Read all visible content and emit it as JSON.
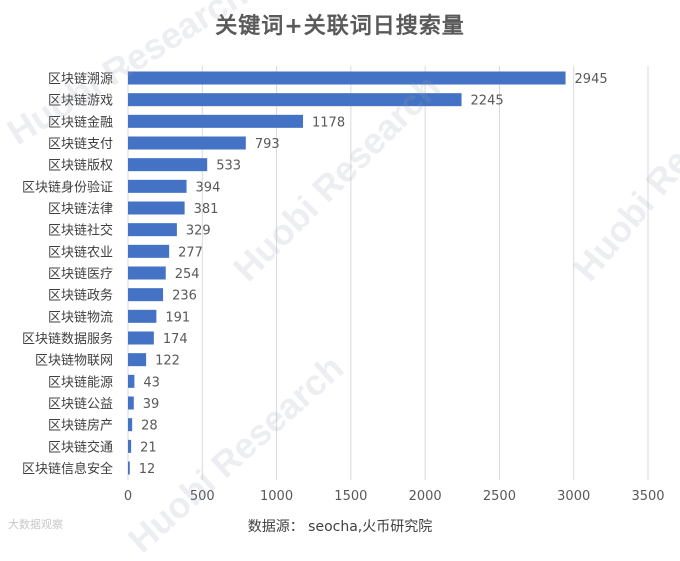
{
  "title": "关键词+关联词日搜索量",
  "source": "数据源： seocha,火币研究院",
  "watermark_text": "Huobi Research",
  "corner_mark": "大数据观察",
  "chart_data": {
    "type": "bar",
    "orientation": "horizontal",
    "title": "关键词+关联词日搜索量",
    "categories": [
      "区块链溯源",
      "区块链游戏",
      "区块链金融",
      "区块链支付",
      "区块链版权",
      "区块链身份验证",
      "区块链法律",
      "区块链社交",
      "区块链农业",
      "区块链医疗",
      "区块链政务",
      "区块链物流",
      "区块链数据服务",
      "区块链物联网",
      "区块链能源",
      "区块链公益",
      "区块链房产",
      "区块链交通",
      "区块链信息安全"
    ],
    "values": [
      2945,
      2245,
      1178,
      793,
      533,
      394,
      381,
      329,
      277,
      254,
      236,
      191,
      174,
      122,
      43,
      39,
      28,
      21,
      12
    ],
    "xlim": [
      0,
      3500
    ],
    "xticks": [
      "0",
      "500",
      "1000",
      "1500",
      "2000",
      "2500",
      "3000",
      "3500"
    ],
    "grid": true,
    "color": "#4472c4"
  }
}
